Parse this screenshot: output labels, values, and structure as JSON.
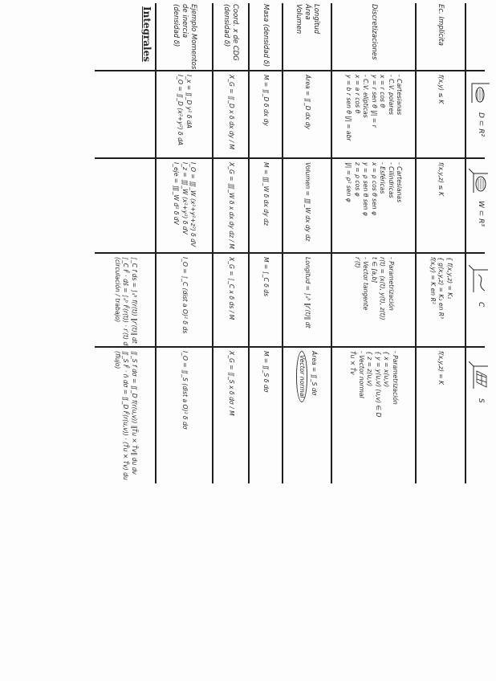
{
  "title": "Integrales",
  "columns": [
    {
      "label": "D ⊂ R²",
      "icon": "plane-region-icon"
    },
    {
      "label": "W ⊂ R³",
      "icon": "solid-region-icon"
    },
    {
      "label": "C",
      "icon": "curve-icon"
    },
    {
      "label": "S",
      "icon": "surface-icon"
    }
  ],
  "rows": [
    {
      "label": [
        "Ec. Implícita"
      ],
      "cells": [
        [
          "f(x,y) ≤ K"
        ],
        [
          "f(x,y,z) ≤ K"
        ],
        [
          "{ f(x,y,z) = K₁",
          "{ g(x,y,z) = K₂   en R³",
          "f(x,y) = K   en R²"
        ],
        [
          "f(x,y,z) = K"
        ]
      ]
    },
    {
      "label": [
        "Discretizaciones"
      ],
      "cells": [
        [
          "- Cartesianas",
          "- C.V. polares",
          "  x = r cos θ",
          "  y = r sen θ     |J| = r",
          "- C.V. elípticas",
          "  x = a r cos θ",
          "  y = b r sen θ   |J| = abr"
        ],
        [
          "- Cartesianas",
          "- Cilíndricas",
          "- Esféricas",
          "  x = ρ cos θ sen φ",
          "  y = ρ sen θ sen φ",
          "  z = ρ cos φ",
          "  |J| = ρ² sen φ"
        ],
        [
          "- Parametrización",
          "r(t) = (x(t), y(t), z(t))",
          "t ∈ [a,b]",
          "- Vector tangente",
          "r′(t)"
        ],
        [
          "- Parametrización",
          "{ x = x(u,v)",
          "{ y = y(u,v)   (u,v) ∈ D",
          "{ z = z(u,v)",
          "- Vector normal",
          "T̄u × T̄v"
        ]
      ]
    },
    {
      "label": [
        "Longitud",
        "Área",
        "Volumen"
      ],
      "cells": [
        [
          "Área = ∬_D dx dy"
        ],
        [
          "Volumen = ∭_W dx dy dz"
        ],
        [
          "Longitud = ∫ₐᵇ ‖r′(t)‖ dt"
        ],
        [
          "Área = ∬_S dσ",
          "Vector normal"
        ]
      ]
    },
    {
      "label": [
        "Masa (densidad δ)"
      ],
      "cells": [
        [
          "M = ∬_D δ dx dy"
        ],
        [
          "M = ∭_W δ dx dy dz"
        ],
        [
          "M = ∫_C δ ds"
        ],
        [
          "M = ∬_S δ dσ"
        ]
      ]
    },
    {
      "label": [
        "Coord. x de CDG",
        "(densidad δ)"
      ],
      "cells": [
        [
          "X_G = ∬_D x δ dx dy / M"
        ],
        [
          "X_G = ∭_W δ x dx dy dz / M"
        ],
        [
          "X_G = ∫_C x δ ds / M"
        ],
        [
          "X_G = ∬_S x δ dσ / M"
        ]
      ]
    },
    {
      "label": [
        "Ejemplo Momentos",
        "de inercia",
        "(densidad δ)"
      ],
      "cells": [
        [
          "I_x = ∬_D y² δ dA",
          "I_O = ∬_D (x²+y²) δ dA"
        ],
        [
          "I_O = ∭_W (x²+y²+z²) δ dV",
          "I_z = ∭_W (x²+y²) δ dV",
          "I_eje = ∭_W d² δ dV"
        ],
        [
          "I_O = ∫_C (dist a O)² δ ds"
        ],
        [
          "I_O = ∬_S (dist a O)² δ dσ"
        ]
      ]
    },
    {
      "label": [],
      "cells": [
        [],
        [],
        [
          "∫_C f ds = ∫ₐᵇ f(r(t)) ‖r′(t)‖ dt",
          "∫_C F̄ · ds̄ = ∫ₐᵇ F̄(r(t)) · r′(t) dt",
          "(circulación / trabajo)"
        ],
        [
          "∬_S f dσ = ∬_D f(r(u,v)) ‖T̄u × T̄v‖ du dv",
          "∬_S F̄ · n̄ dσ = ∬_D F̄(r(u,v)) · (T̄u × T̄v) du dv",
          "(flujo)"
        ]
      ]
    }
  ]
}
